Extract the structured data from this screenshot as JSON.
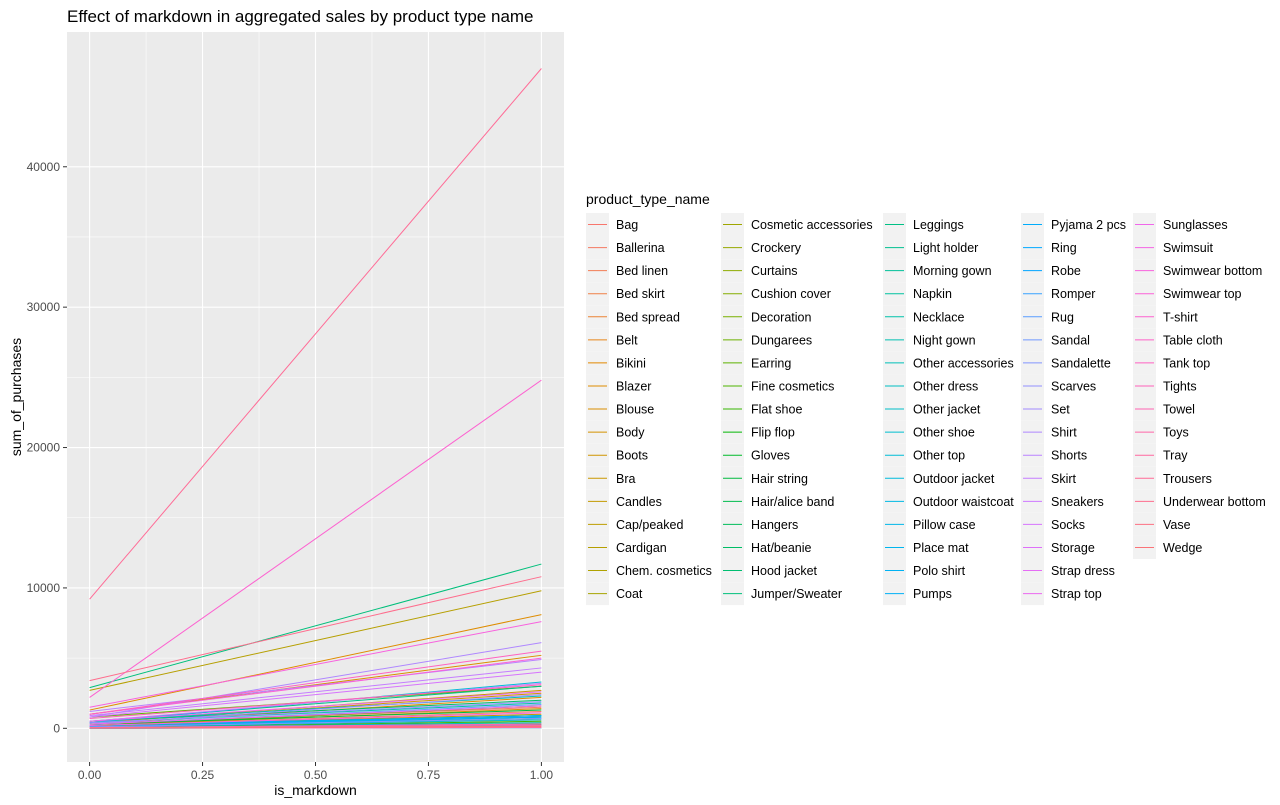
{
  "chart_data": {
    "type": "line",
    "title": "Effect of markdown in aggregated sales by product type name",
    "xlabel": "is_markdown",
    "ylabel": "sum_of_purchases",
    "xlim": [
      -0.05,
      1.05
    ],
    "ylim": [
      -2400,
      49600
    ],
    "x_ticks": [
      0.0,
      0.25,
      0.5,
      0.75,
      1.0
    ],
    "x_tick_labels": [
      "0.00",
      "0.25",
      "0.50",
      "0.75",
      "1.00"
    ],
    "y_ticks": [
      0,
      10000,
      20000,
      30000,
      40000
    ],
    "y_tick_labels": [
      "0",
      "10000",
      "20000",
      "30000",
      "40000"
    ],
    "x": [
      0,
      1
    ],
    "grid": true,
    "legend_title": "product_type_name",
    "legend_placement": "right",
    "series": [
      {
        "name": "Bag",
        "values": [
          300,
          1500
        ]
      },
      {
        "name": "Ballerina",
        "values": [
          200,
          1200
        ]
      },
      {
        "name": "Bed linen",
        "values": [
          100,
          600
        ]
      },
      {
        "name": "Bed skirt",
        "values": [
          20,
          150
        ]
      },
      {
        "name": "Bed spread",
        "values": [
          50,
          300
        ]
      },
      {
        "name": "Belt",
        "values": [
          150,
          900
        ]
      },
      {
        "name": "Bikini",
        "values": [
          300,
          2200
        ]
      },
      {
        "name": "Blazer",
        "values": [
          1300,
          8100
        ]
      },
      {
        "name": "Blouse",
        "values": [
          1000,
          5200
        ]
      },
      {
        "name": "Body",
        "values": [
          200,
          1400
        ]
      },
      {
        "name": "Boots",
        "values": [
          400,
          2500
        ]
      },
      {
        "name": "Bra",
        "values": [
          400,
          2700
        ]
      },
      {
        "name": "Candles",
        "values": [
          30,
          200
        ]
      },
      {
        "name": "Cap/peaked",
        "values": [
          200,
          1000
        ]
      },
      {
        "name": "Cardigan",
        "values": [
          2700,
          9800
        ]
      },
      {
        "name": "Chem. cosmetics",
        "values": [
          10,
          80
        ]
      },
      {
        "name": "Coat",
        "values": [
          100,
          700
        ]
      },
      {
        "name": "Cosmetic accessories",
        "values": [
          60,
          400
        ]
      },
      {
        "name": "Crockery",
        "values": [
          20,
          100
        ]
      },
      {
        "name": "Curtains",
        "values": [
          20,
          80
        ]
      },
      {
        "name": "Cushion cover",
        "values": [
          40,
          200
        ]
      },
      {
        "name": "Decoration",
        "values": [
          30,
          150
        ]
      },
      {
        "name": "Dungarees",
        "values": [
          200,
          1600
        ]
      },
      {
        "name": "Earring",
        "values": [
          800,
          3000
        ]
      },
      {
        "name": "Fine cosmetics",
        "values": [
          20,
          120
        ]
      },
      {
        "name": "Flat shoe",
        "values": [
          60,
          500
        ]
      },
      {
        "name": "Flip flop",
        "values": [
          30,
          250
        ]
      },
      {
        "name": "Gloves",
        "values": [
          40,
          300
        ]
      },
      {
        "name": "Hair string",
        "values": [
          300,
          1300
        ]
      },
      {
        "name": "Hair/alice band",
        "values": [
          200,
          900
        ]
      },
      {
        "name": "Hangers",
        "values": [
          10,
          60
        ]
      },
      {
        "name": "Hat/beanie",
        "values": [
          500,
          2000
        ]
      },
      {
        "name": "Hood jacket",
        "values": [
          100,
          800
        ]
      },
      {
        "name": "Jumper/Sweater",
        "values": [
          2900,
          11700
        ]
      },
      {
        "name": "Leggings",
        "values": [
          500,
          3000
        ]
      },
      {
        "name": "Light holder",
        "values": [
          10,
          60
        ]
      },
      {
        "name": "Morning gown",
        "values": [
          20,
          150
        ]
      },
      {
        "name": "Napkin",
        "values": [
          10,
          50
        ]
      },
      {
        "name": "Necklace",
        "values": [
          400,
          1800
        ]
      },
      {
        "name": "Night gown",
        "values": [
          100,
          800
        ]
      },
      {
        "name": "Other accessories",
        "values": [
          500,
          2300
        ]
      },
      {
        "name": "Other dress",
        "values": [
          50,
          400
        ]
      },
      {
        "name": "Other jacket",
        "values": [
          30,
          200
        ]
      },
      {
        "name": "Other shoe",
        "values": [
          100,
          600
        ]
      },
      {
        "name": "Other top",
        "values": [
          400,
          3300
        ]
      },
      {
        "name": "Outdoor jacket",
        "values": [
          100,
          900
        ]
      },
      {
        "name": "Outdoor waistcoat",
        "values": [
          30,
          200
        ]
      },
      {
        "name": "Pillow case",
        "values": [
          10,
          70
        ]
      },
      {
        "name": "Place mat",
        "values": [
          10,
          40
        ]
      },
      {
        "name": "Polo shirt",
        "values": [
          50,
          300
        ]
      },
      {
        "name": "Pumps",
        "values": [
          100,
          700
        ]
      },
      {
        "name": "Pyjama 2 pcs",
        "values": [
          100,
          800
        ]
      },
      {
        "name": "Ring",
        "values": [
          200,
          900
        ]
      },
      {
        "name": "Robe",
        "values": [
          30,
          200
        ]
      },
      {
        "name": "Romper",
        "values": [
          20,
          150
        ]
      },
      {
        "name": "Rug",
        "values": [
          10,
          80
        ]
      },
      {
        "name": "Sandal",
        "values": [
          300,
          1700
        ]
      },
      {
        "name": "Sandalette",
        "values": [
          100,
          700
        ]
      },
      {
        "name": "Scarves",
        "values": [
          400,
          1900
        ]
      },
      {
        "name": "Set",
        "values": [
          300,
          2400
        ]
      },
      {
        "name": "Shirt",
        "values": [
          800,
          6100
        ]
      },
      {
        "name": "Shorts",
        "values": [
          1200,
          4900
        ]
      },
      {
        "name": "Skirt",
        "values": [
          900,
          4300
        ]
      },
      {
        "name": "Sneakers",
        "values": [
          500,
          3200
        ]
      },
      {
        "name": "Socks",
        "values": [
          800,
          4000
        ]
      },
      {
        "name": "Storage",
        "values": [
          20,
          100
        ]
      },
      {
        "name": "Strap dress",
        "values": [
          50,
          300
        ]
      },
      {
        "name": "Strap top",
        "values": [
          500,
          2600
        ]
      },
      {
        "name": "Sunglasses",
        "values": [
          300,
          1600
        ]
      },
      {
        "name": "Swimsuit",
        "values": [
          200,
          1100
        ]
      },
      {
        "name": "Swimwear bottom",
        "values": [
          1500,
          7600
        ]
      },
      {
        "name": "Swimwear top",
        "values": [
          1000,
          5000
        ]
      },
      {
        "name": "T-shirt",
        "values": [
          2200,
          24800
        ]
      },
      {
        "name": "Table cloth",
        "values": [
          10,
          60
        ]
      },
      {
        "name": "Tank top",
        "values": [
          1000,
          5500
        ]
      },
      {
        "name": "Tights",
        "values": [
          700,
          3100
        ]
      },
      {
        "name": "Towel",
        "values": [
          30,
          200
        ]
      },
      {
        "name": "Toys",
        "values": [
          50,
          300
        ]
      },
      {
        "name": "Tray",
        "values": [
          10,
          50
        ]
      },
      {
        "name": "Trousers",
        "values": [
          9200,
          47000
        ]
      },
      {
        "name": "Underwear bottom",
        "values": [
          3400,
          10800
        ]
      },
      {
        "name": "Vase",
        "values": [
          20,
          120
        ]
      },
      {
        "name": "Wedge",
        "values": [
          20,
          150
        ]
      }
    ]
  }
}
